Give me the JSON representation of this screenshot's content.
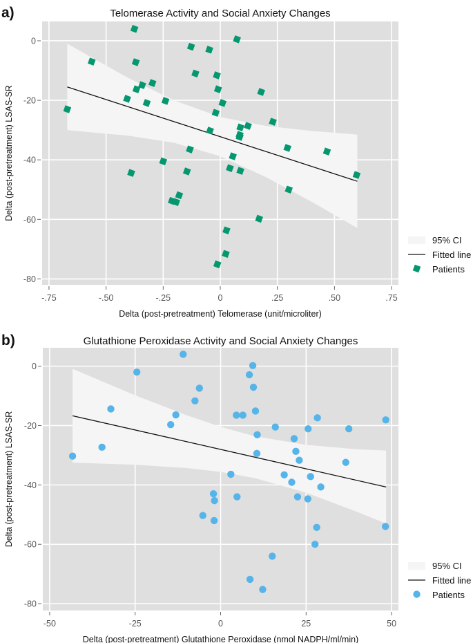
{
  "chart_data": [
    {
      "panel_label": "a)",
      "type": "scatter",
      "title": "Telomerase Activity and Social Anxiety Changes",
      "xlabel": "Delta (post-pretreatment) Telomerase (unit/microliter)",
      "ylabel": "Delta (post-pretreatment) LSAS-SR",
      "xlim": [
        -0.78,
        0.78
      ],
      "ylim": [
        -82,
        6.5
      ],
      "xticks": [
        -0.75,
        -0.5,
        -0.25,
        0,
        0.25,
        0.5,
        0.75
      ],
      "xtick_labels": [
        "-.75",
        "-.50",
        "-.25",
        "0",
        ".25",
        ".50",
        ".75"
      ],
      "yticks": [
        0,
        -20,
        -40,
        -60,
        -80
      ],
      "ytick_labels": [
        "0",
        "-20",
        "-40",
        "-60",
        "-80"
      ],
      "grid": true,
      "legend_position": "right",
      "legend": [
        "95% CI",
        "Fitted line",
        "Patients"
      ],
      "marker": "diamond",
      "colors": {
        "points": "#05976f",
        "line": "#111111",
        "ci": "#f5f5f5",
        "plot_bg": "#dfdfdf"
      },
      "fitted_line": [
        [
          -0.67,
          -15.5
        ],
        [
          0.6,
          -47.2
        ]
      ],
      "ci": [
        [
          -0.67,
          -30.0,
          -1.0
        ],
        [
          -0.4,
          -31.9,
          -12.6
        ],
        [
          -0.2,
          -34.3,
          -20.1
        ],
        [
          0,
          -38.8,
          -25.6
        ],
        [
          0.2,
          -45.8,
          -28.6
        ],
        [
          0.4,
          -54.1,
          -30.3
        ],
        [
          0.6,
          -62.9,
          -31.5
        ]
      ],
      "points": [
        [
          -0.376,
          4
        ],
        [
          -0.128,
          -2
        ],
        [
          -0.048,
          -3
        ],
        [
          -0.563,
          -7
        ],
        [
          -0.37,
          -7.2
        ],
        [
          -0.109,
          -11
        ],
        [
          -0.015,
          -11.6
        ],
        [
          -0.342,
          -14.9
        ],
        [
          -0.297,
          -14.2
        ],
        [
          -0.367,
          -16.3
        ],
        [
          -0.01,
          -16.3
        ],
        [
          -0.408,
          -19.5
        ],
        [
          -0.322,
          -20.9
        ],
        [
          -0.24,
          -20.2
        ],
        [
          0.01,
          -20.9
        ],
        [
          -0.67,
          -23
        ],
        [
          -0.02,
          -24.2
        ],
        [
          -0.045,
          -30.2
        ],
        [
          -0.133,
          -36.5
        ],
        [
          -0.25,
          -40.5
        ],
        [
          -0.39,
          -44.4
        ],
        [
          -0.146,
          -43.9
        ],
        [
          -0.18,
          -51.9
        ],
        [
          -0.212,
          -53.8
        ],
        [
          -0.193,
          -54.2
        ],
        [
          0.073,
          0.5
        ],
        [
          0.179,
          -17.2
        ],
        [
          0.23,
          -27.2
        ],
        [
          0.088,
          -29.1
        ],
        [
          0.121,
          -28.6
        ],
        [
          0.085,
          -31.6
        ],
        [
          0.085,
          -32.3
        ],
        [
          0.294,
          -36.0
        ],
        [
          0.467,
          -37.2
        ],
        [
          0.055,
          -38.8
        ],
        [
          0.042,
          -42.8
        ],
        [
          0.088,
          -43.7
        ],
        [
          0.597,
          -45.1
        ],
        [
          0.3,
          -50
        ],
        [
          0.17,
          -59.8
        ],
        [
          0.027,
          -63.7
        ],
        [
          0.024,
          -71.6
        ],
        [
          -0.013,
          -75.1
        ]
      ]
    },
    {
      "panel_label": "b)",
      "type": "scatter",
      "title": "Glutathione Peroxidase Activity and Social Anxiety Changes",
      "xlabel": "Delta (post-pretreatment) Glutathione Peroxidase (nmol NADPH/ml/min)",
      "ylabel": "Delta (post-pretreatment) LSAS-SR",
      "xlim": [
        -52,
        52
      ],
      "ylim": [
        -82.3,
        6.2
      ],
      "xticks": [
        -50,
        -25,
        0,
        25,
        50
      ],
      "xtick_labels": [
        "-50",
        "-25",
        "0",
        "25",
        "50"
      ],
      "yticks": [
        0,
        -20,
        -40,
        -60,
        -80
      ],
      "ytick_labels": [
        "0",
        "-20",
        "-40",
        "-60",
        "-80"
      ],
      "grid": true,
      "legend_position": "right",
      "legend": [
        "95% CI",
        "Fitted line",
        "Patients"
      ],
      "marker": "circle",
      "colors": {
        "points": "#56b4e9",
        "line": "#111111",
        "ci": "#f5f5f5",
        "plot_bg": "#dfdfdf"
      },
      "fitted_line": [
        [
          -43.3,
          -16.7
        ],
        [
          48.4,
          -40.7
        ]
      ],
      "ci": [
        [
          -43.3,
          -32.5,
          -0.9
        ],
        [
          -25,
          -33.2,
          -9.8
        ],
        [
          -10,
          -34.3,
          -16.5
        ],
        [
          0,
          -35.6,
          -20.4
        ],
        [
          10,
          -37.7,
          -23.6
        ],
        [
          25,
          -42.6,
          -26.5
        ],
        [
          40,
          -49.1,
          -28.0
        ],
        [
          48.4,
          -53.0,
          -28.4
        ]
      ],
      "points": [
        [
          -10.95,
          4.0
        ],
        [
          -24.5,
          -2.0
        ],
        [
          -6.2,
          -7.4
        ],
        [
          -7.5,
          -11.7
        ],
        [
          -32.1,
          -14.4
        ],
        [
          -13.1,
          -16.4
        ],
        [
          -14.6,
          -19.7
        ],
        [
          -34.7,
          -27.3
        ],
        [
          -43.3,
          -30.3
        ],
        [
          -2.1,
          -43
        ],
        [
          -1.8,
          -45.3
        ],
        [
          -5.2,
          -50.3
        ],
        [
          -1.9,
          -52
        ],
        [
          9.4,
          0.2
        ],
        [
          8.4,
          -2.9
        ],
        [
          9.6,
          -7.1
        ],
        [
          10.2,
          -15.1
        ],
        [
          4.6,
          -16.5
        ],
        [
          6.5,
          -16.5
        ],
        [
          28.3,
          -17.4
        ],
        [
          48.3,
          -18.1
        ],
        [
          16.0,
          -20.5
        ],
        [
          25.6,
          -21.1
        ],
        [
          37.5,
          -21.1
        ],
        [
          10.7,
          -23.1
        ],
        [
          21.5,
          -24.4
        ],
        [
          22.0,
          -28.7
        ],
        [
          10.6,
          -29.4
        ],
        [
          23.0,
          -31.7
        ],
        [
          36.6,
          -32.4
        ],
        [
          3.0,
          -36.4
        ],
        [
          18.6,
          -36.6
        ],
        [
          26.3,
          -37.2
        ],
        [
          20.8,
          -39.1
        ],
        [
          29.3,
          -40.7
        ],
        [
          4.8,
          -44
        ],
        [
          22.5,
          -44
        ],
        [
          25.5,
          -44.7
        ],
        [
          28.1,
          -54.3
        ],
        [
          48.2,
          -54
        ],
        [
          27.6,
          -60
        ],
        [
          15.1,
          -64
        ],
        [
          8.6,
          -71.8
        ],
        [
          12.3,
          -75.2
        ]
      ]
    }
  ]
}
